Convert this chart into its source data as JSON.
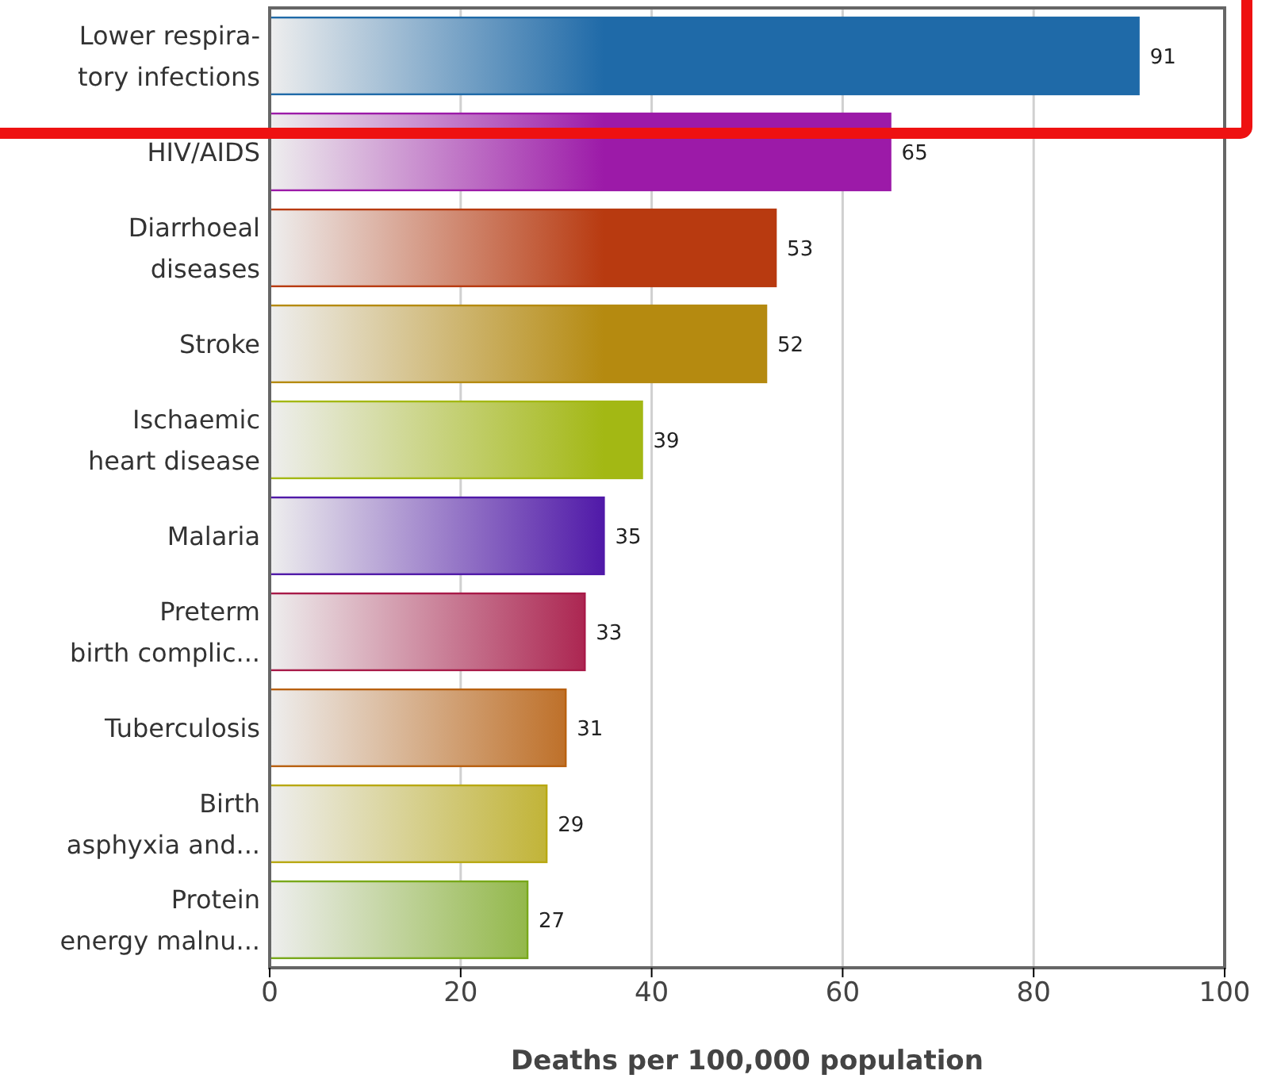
{
  "chart_data": {
    "type": "bar",
    "orientation": "horizontal",
    "xlabel": "Deaths per 100,000 population",
    "categories": [
      "Lower respira-\ntory infections",
      "HIV/AIDS",
      "Diarrhoeal\ndiseases",
      "Stroke",
      "Ischaemic\nheart disease",
      "Malaria",
      "Preterm\nbirth complic...",
      "Tuberculosis",
      "Birth\nasphyxia and...",
      "Protein\nenergy malnu..."
    ],
    "values": [
      91,
      65,
      53,
      52,
      39,
      35,
      33,
      31,
      29,
      27
    ],
    "colors": [
      "#1f6aa8",
      "#9c1aa8",
      "#b83a10",
      "#b58a10",
      "#a3b814",
      "#5019a8",
      "#a81a48",
      "#b86010",
      "#b8a812",
      "#78a81a"
    ],
    "xlim": [
      0,
      100
    ],
    "xticks": [
      0,
      20,
      40,
      60,
      80,
      100
    ],
    "grid": "x",
    "data_labels": true
  }
}
